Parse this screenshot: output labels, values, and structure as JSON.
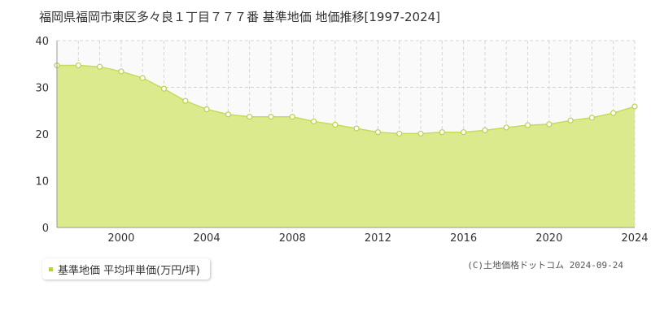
{
  "title": "福岡県福岡市東区多々良１丁目７７７番 基準地価 地価推移[1997-2024]",
  "legend_label": "基準地価 平均坪単価(万円/坪)",
  "copyright": "(C)土地価格ドットコム 2024-09-24",
  "colors": {
    "fill": "#dcea8e",
    "line": "#c4dc5a",
    "point_stroke": "#b9d24a",
    "point_fill": "#ffffff",
    "plot_bg": "#fafafa",
    "grid": "#d6d6d6",
    "axis_text": "#333333",
    "legend_marker": "#b5d334"
  },
  "chart_data": {
    "type": "area",
    "x": [
      1997,
      1998,
      1999,
      2000,
      2001,
      2002,
      2003,
      2004,
      2005,
      2006,
      2007,
      2008,
      2009,
      2010,
      2011,
      2012,
      2013,
      2014,
      2015,
      2016,
      2017,
      2018,
      2019,
      2020,
      2021,
      2022,
      2023,
      2024
    ],
    "series": [
      {
        "name": "基準地価 平均坪単価(万円/坪)",
        "values": [
          34.7,
          34.7,
          34.4,
          33.4,
          32.0,
          29.7,
          27.1,
          25.3,
          24.2,
          23.7,
          23.7,
          23.7,
          22.7,
          22.0,
          21.2,
          20.4,
          20.1,
          20.1,
          20.4,
          20.4,
          20.8,
          21.4,
          21.9,
          22.1,
          22.9,
          23.5,
          24.5,
          25.9
        ]
      }
    ],
    "xticks": [
      "2000",
      "2004",
      "2008",
      "2012",
      "2016",
      "2020",
      "2024"
    ],
    "yticks": [
      "0",
      "10",
      "20",
      "30",
      "40"
    ],
    "xlim": [
      1997,
      2024
    ],
    "ylim": [
      0,
      40
    ],
    "grid": true,
    "legend_position": "bottom-left"
  }
}
